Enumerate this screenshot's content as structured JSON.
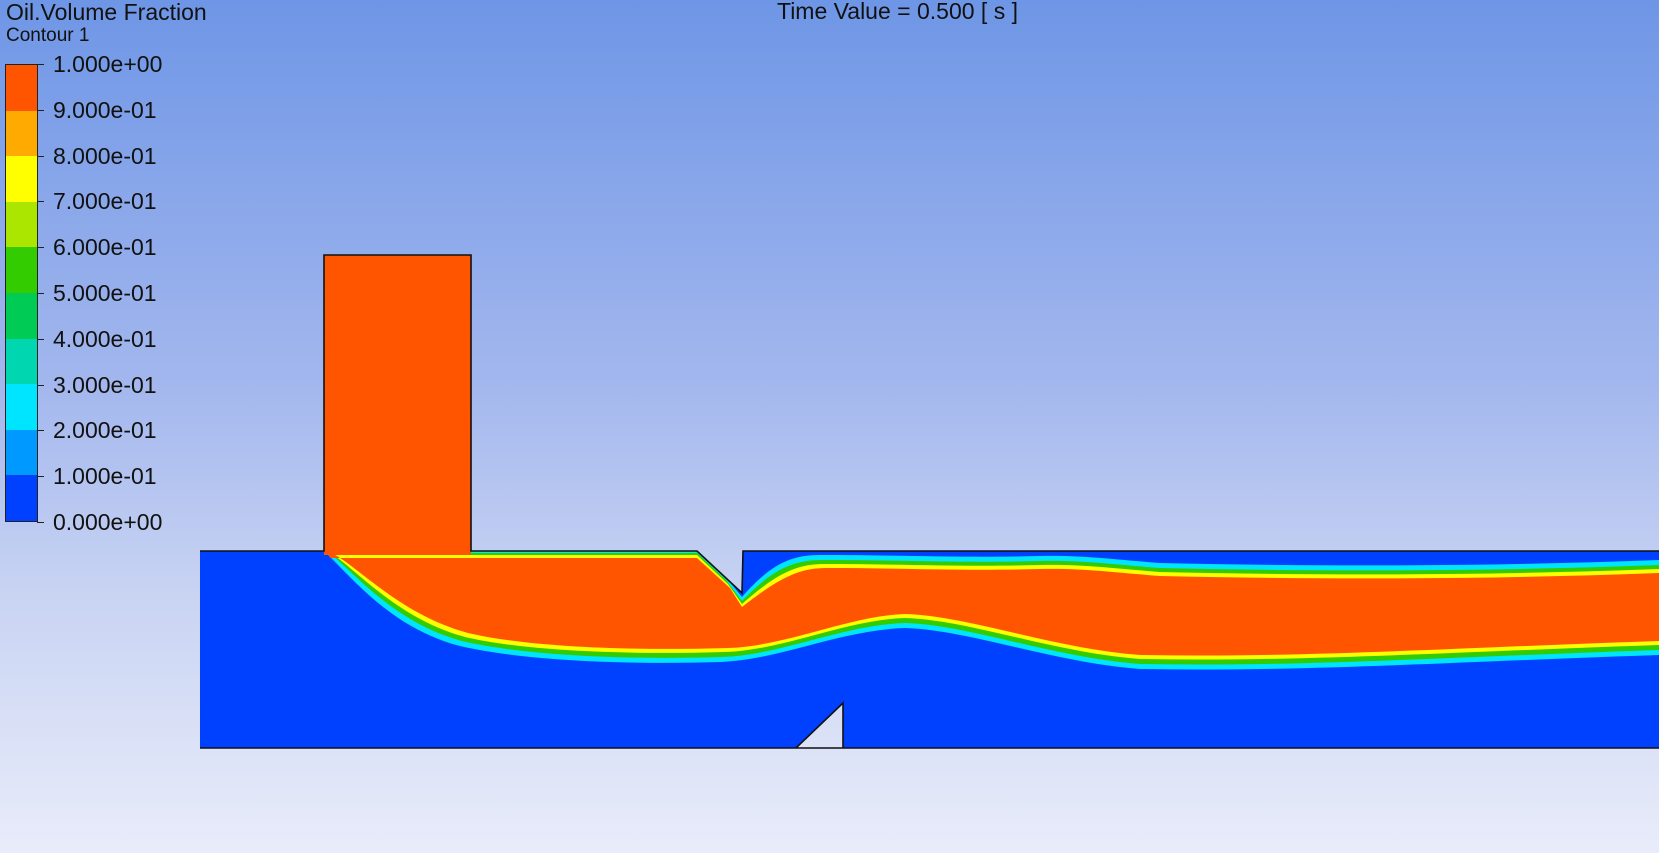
{
  "legend": {
    "variable": "Oil.Volume Fraction",
    "contour": "Contour 1",
    "ticks": [
      "1.000e+00",
      "9.000e-01",
      "8.000e-01",
      "7.000e-01",
      "6.000e-01",
      "5.000e-01",
      "4.000e-01",
      "3.000e-01",
      "2.000e-01",
      "1.000e-01",
      "0.000e+00"
    ],
    "band_colors": [
      "#ff5500",
      "#ffaa00",
      "#ffff00",
      "#aae600",
      "#33cc00",
      "#00cc55",
      "#00d6b0",
      "#00e5ff",
      "#0099ff",
      "#0040ff"
    ]
  },
  "time_label": "Time Value = 0.500 [ s ]",
  "colors": {
    "water": "#0040ff",
    "oil": "#ff5500",
    "outline": "#111111"
  }
}
